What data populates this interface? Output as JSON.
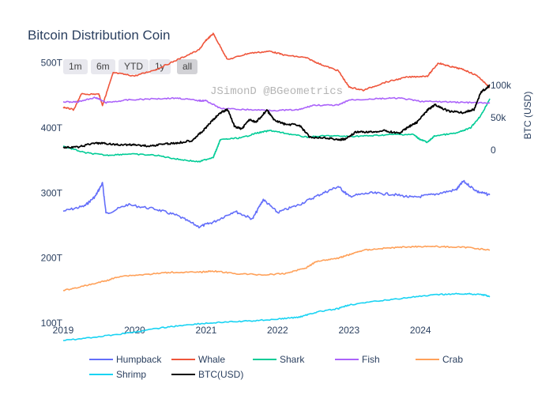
{
  "chart_data": {
    "type": "line",
    "title": "Bitcoin Distribution Coin",
    "watermark": "JSimonD @BGeometrics",
    "range_buttons": [
      {
        "label": "1m",
        "active": false
      },
      {
        "label": "6m",
        "active": false
      },
      {
        "label": "YTD",
        "active": false
      },
      {
        "label": "1y",
        "active": false
      },
      {
        "label": "all",
        "active": true
      }
    ],
    "x_ticks": [
      "2019",
      "2020",
      "2021",
      "2022",
      "2023",
      "2024"
    ],
    "x_range": [
      2019.0,
      2024.97
    ],
    "y_left": {
      "range": [
        50,
        530
      ],
      "ticks": [
        {
          "v": 100,
          "label": "100T"
        },
        {
          "v": 200,
          "label": "200T"
        },
        {
          "v": 300,
          "label": "300T"
        },
        {
          "v": 400,
          "label": "400T"
        },
        {
          "v": 500,
          "label": "500T"
        }
      ]
    },
    "y_right": {
      "title": "BTC (USD)",
      "range": [
        0,
        110
      ],
      "ticks": [
        {
          "v": 0,
          "label": "0"
        },
        {
          "v": 50,
          "label": "50k"
        },
        {
          "v": 100,
          "label": "100k"
        }
      ]
    },
    "series": [
      {
        "name": "Humpback",
        "color": "#636efa",
        "axis": "left",
        "points": [
          [
            2019.0,
            272
          ],
          [
            2019.3,
            280
          ],
          [
            2019.45,
            295
          ],
          [
            2019.55,
            315
          ],
          [
            2019.6,
            268
          ],
          [
            2019.9,
            282
          ],
          [
            2020.3,
            275
          ],
          [
            2020.6,
            265
          ],
          [
            2020.9,
            248
          ],
          [
            2021.1,
            255
          ],
          [
            2021.4,
            272
          ],
          [
            2021.65,
            260
          ],
          [
            2021.8,
            290
          ],
          [
            2022.0,
            270
          ],
          [
            2022.3,
            282
          ],
          [
            2022.6,
            298
          ],
          [
            2022.85,
            310
          ],
          [
            2023.0,
            295
          ],
          [
            2023.3,
            300
          ],
          [
            2023.6,
            298
          ],
          [
            2023.9,
            293
          ],
          [
            2024.2,
            298
          ],
          [
            2024.5,
            305
          ],
          [
            2024.6,
            318
          ],
          [
            2024.8,
            302
          ],
          [
            2024.97,
            297
          ]
        ]
      },
      {
        "name": "Whale",
        "color": "#ef553b",
        "axis": "left",
        "points": [
          [
            2019.0,
            432
          ],
          [
            2019.15,
            428
          ],
          [
            2019.25,
            452
          ],
          [
            2019.5,
            452
          ],
          [
            2019.55,
            435
          ],
          [
            2019.7,
            485
          ],
          [
            2020.0,
            480
          ],
          [
            2020.3,
            490
          ],
          [
            2020.6,
            505
          ],
          [
            2020.9,
            520
          ],
          [
            2021.0,
            535
          ],
          [
            2021.1,
            545
          ],
          [
            2021.3,
            505
          ],
          [
            2021.6,
            515
          ],
          [
            2021.9,
            518
          ],
          [
            2022.1,
            512
          ],
          [
            2022.4,
            508
          ],
          [
            2022.6,
            498
          ],
          [
            2022.85,
            488
          ],
          [
            2023.0,
            463
          ],
          [
            2023.2,
            458
          ],
          [
            2023.5,
            470
          ],
          [
            2023.8,
            478
          ],
          [
            2024.1,
            480
          ],
          [
            2024.25,
            500
          ],
          [
            2024.4,
            495
          ],
          [
            2024.6,
            490
          ],
          [
            2024.8,
            480
          ],
          [
            2024.97,
            462
          ]
        ]
      },
      {
        "name": "Shark",
        "color": "#00cc96",
        "axis": "left",
        "points": [
          [
            2019.0,
            372
          ],
          [
            2019.3,
            362
          ],
          [
            2019.6,
            358
          ],
          [
            2019.9,
            360
          ],
          [
            2020.3,
            358
          ],
          [
            2020.6,
            352
          ],
          [
            2020.9,
            348
          ],
          [
            2021.1,
            355
          ],
          [
            2021.15,
            368
          ],
          [
            2021.2,
            382
          ],
          [
            2021.5,
            385
          ],
          [
            2021.7,
            392
          ],
          [
            2021.9,
            396
          ],
          [
            2022.1,
            392
          ],
          [
            2022.4,
            386
          ],
          [
            2022.7,
            388
          ],
          [
            2023.0,
            387
          ],
          [
            2023.3,
            388
          ],
          [
            2023.6,
            390
          ],
          [
            2023.9,
            390
          ],
          [
            2024.0,
            382
          ],
          [
            2024.1,
            378
          ],
          [
            2024.2,
            388
          ],
          [
            2024.5,
            392
          ],
          [
            2024.7,
            400
          ],
          [
            2024.85,
            420
          ],
          [
            2024.97,
            445
          ]
        ]
      },
      {
        "name": "Fish",
        "color": "#ab63fa",
        "axis": "left",
        "points": [
          [
            2019.0,
            440
          ],
          [
            2019.2,
            440
          ],
          [
            2019.45,
            447
          ],
          [
            2019.6,
            439
          ],
          [
            2019.9,
            443
          ],
          [
            2020.3,
            445
          ],
          [
            2020.6,
            446
          ],
          [
            2020.9,
            442
          ],
          [
            2021.0,
            442
          ],
          [
            2021.2,
            430
          ],
          [
            2021.6,
            428
          ],
          [
            2022.0,
            427
          ],
          [
            2022.3,
            428
          ],
          [
            2022.5,
            435
          ],
          [
            2022.85,
            435
          ],
          [
            2023.0,
            443
          ],
          [
            2023.4,
            445
          ],
          [
            2023.7,
            446
          ],
          [
            2024.0,
            441
          ],
          [
            2024.4,
            440
          ],
          [
            2024.7,
            439
          ],
          [
            2024.97,
            438
          ]
        ]
      },
      {
        "name": "Crab",
        "color": "#ffa15a",
        "axis": "left",
        "points": [
          [
            2019.0,
            150
          ],
          [
            2019.3,
            157
          ],
          [
            2019.6,
            165
          ],
          [
            2019.8,
            172
          ],
          [
            2020.2,
            175
          ],
          [
            2020.5,
            178
          ],
          [
            2020.9,
            178
          ],
          [
            2021.1,
            180
          ],
          [
            2021.4,
            176
          ],
          [
            2021.8,
            174
          ],
          [
            2022.1,
            176
          ],
          [
            2022.4,
            185
          ],
          [
            2022.55,
            195
          ],
          [
            2022.85,
            200
          ],
          [
            2023.0,
            205
          ],
          [
            2023.2,
            212
          ],
          [
            2023.5,
            215
          ],
          [
            2023.8,
            217
          ],
          [
            2024.1,
            218
          ],
          [
            2024.4,
            217
          ],
          [
            2024.7,
            216
          ],
          [
            2024.97,
            212
          ]
        ]
      },
      {
        "name": "Shrimp",
        "color": "#19d3f3",
        "axis": "left",
        "points": [
          [
            2019.0,
            73
          ],
          [
            2019.5,
            79
          ],
          [
            2020.0,
            86
          ],
          [
            2020.4,
            93
          ],
          [
            2020.8,
            98
          ],
          [
            2021.2,
            101
          ],
          [
            2021.6,
            103
          ],
          [
            2022.0,
            106
          ],
          [
            2022.3,
            109
          ],
          [
            2022.55,
            117
          ],
          [
            2022.85,
            122
          ],
          [
            2023.0,
            128
          ],
          [
            2023.5,
            135
          ],
          [
            2023.9,
            140
          ],
          [
            2024.3,
            144
          ],
          [
            2024.6,
            145
          ],
          [
            2024.85,
            144
          ],
          [
            2024.97,
            141
          ]
        ]
      },
      {
        "name": "BTC(USD)",
        "color": "#000000",
        "axis": "right",
        "points": [
          [
            2019.0,
            3.8
          ],
          [
            2019.2,
            4.5
          ],
          [
            2019.45,
            11
          ],
          [
            2019.6,
            10
          ],
          [
            2019.8,
            8
          ],
          [
            2020.0,
            8.5
          ],
          [
            2020.2,
            6
          ],
          [
            2020.4,
            9.5
          ],
          [
            2020.6,
            11
          ],
          [
            2020.8,
            15
          ],
          [
            2020.95,
            29
          ],
          [
            2021.1,
            47
          ],
          [
            2021.2,
            58
          ],
          [
            2021.3,
            63
          ],
          [
            2021.4,
            36
          ],
          [
            2021.5,
            33
          ],
          [
            2021.6,
            47
          ],
          [
            2021.7,
            43
          ],
          [
            2021.85,
            62
          ],
          [
            2021.95,
            47
          ],
          [
            2022.1,
            40
          ],
          [
            2022.3,
            39
          ],
          [
            2022.45,
            20
          ],
          [
            2022.7,
            19
          ],
          [
            2022.85,
            16
          ],
          [
            2022.95,
            17
          ],
          [
            2023.1,
            28
          ],
          [
            2023.3,
            28
          ],
          [
            2023.5,
            30
          ],
          [
            2023.7,
            26
          ],
          [
            2023.85,
            37
          ],
          [
            2023.95,
            43
          ],
          [
            2024.1,
            62
          ],
          [
            2024.2,
            70
          ],
          [
            2024.4,
            60
          ],
          [
            2024.6,
            58
          ],
          [
            2024.75,
            63
          ],
          [
            2024.85,
            90
          ],
          [
            2024.97,
            100
          ]
        ]
      }
    ],
    "legend": {
      "placement": "bottom"
    }
  }
}
